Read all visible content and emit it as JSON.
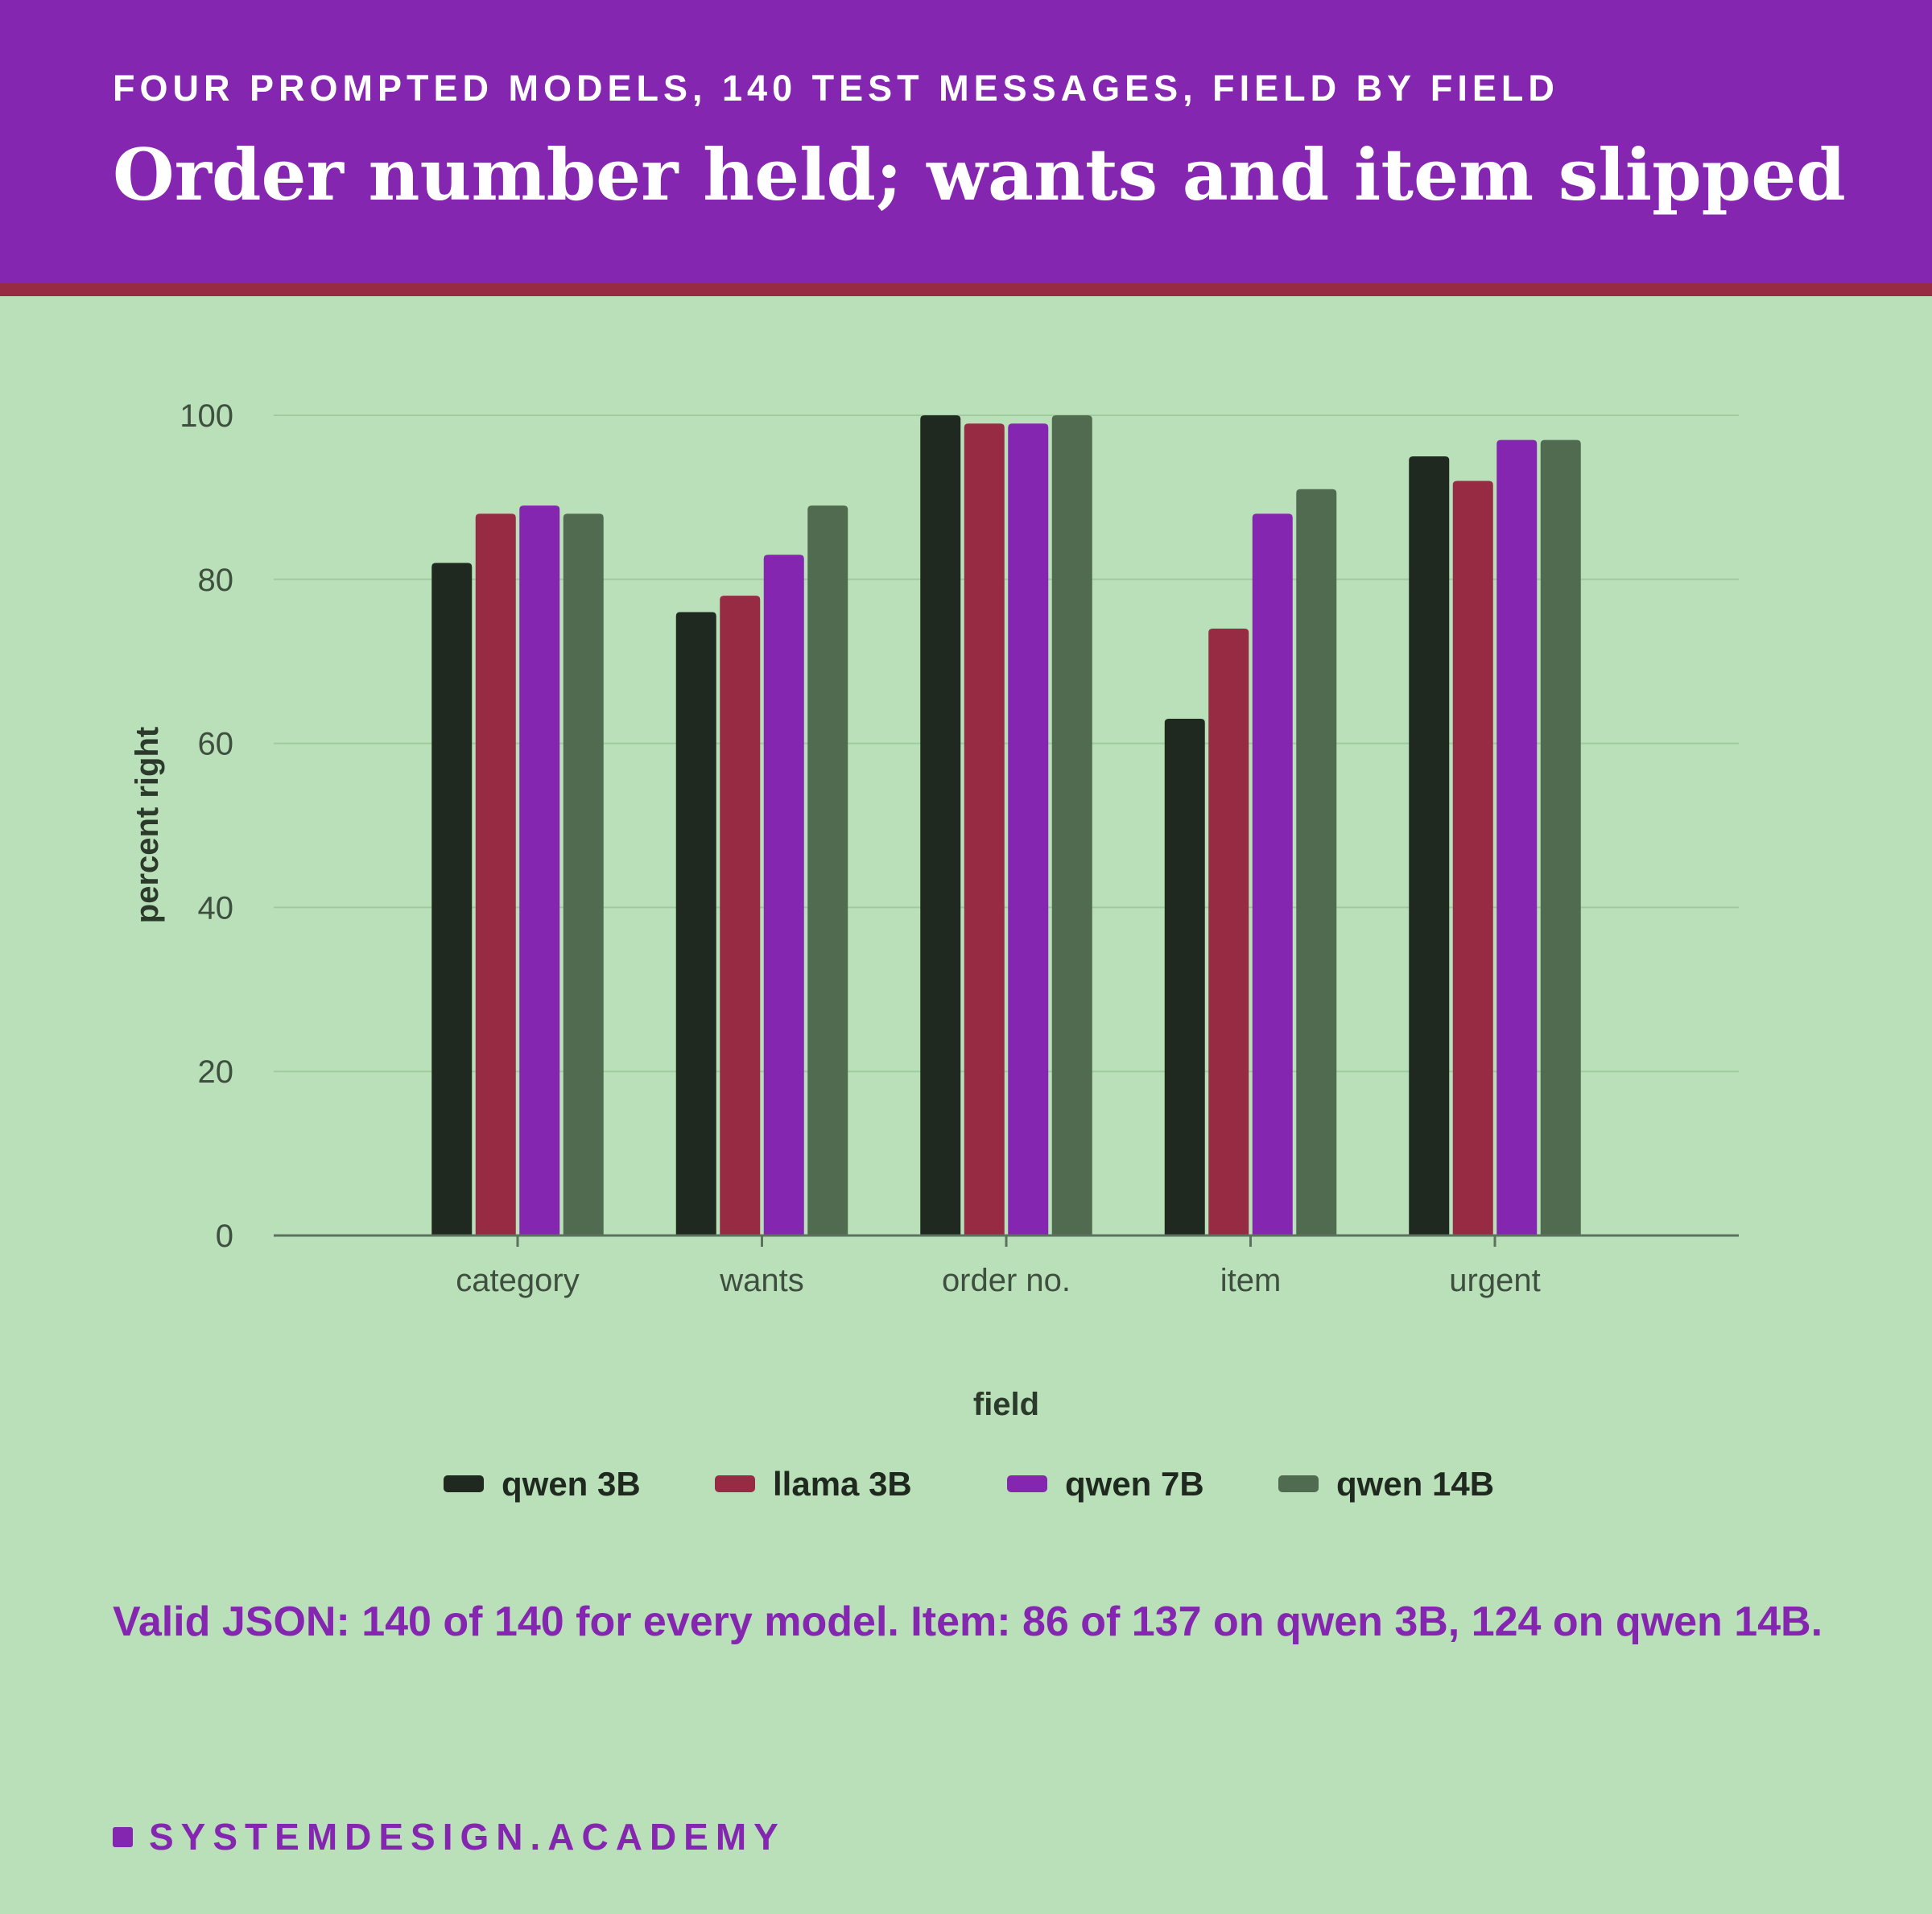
{
  "header": {
    "eyebrow": "FOUR PROMPTED MODELS, 140 TEST MESSAGES, FIELD BY FIELD",
    "title": "Order number held; wants and item slipped"
  },
  "chart_data": {
    "type": "bar",
    "xlabel": "field",
    "ylabel": "percent right",
    "ylim": [
      0,
      100
    ],
    "yticks": [
      0,
      20,
      40,
      60,
      80,
      100
    ],
    "grid": true,
    "legend_position": "bottom",
    "categories": [
      "category",
      "wants",
      "order no.",
      "item",
      "urgent"
    ],
    "series": [
      {
        "name": "qwen 3B",
        "color": "#1f291f",
        "values": [
          82,
          76,
          100,
          63,
          95
        ]
      },
      {
        "name": "llama 3B",
        "color": "#962b43",
        "values": [
          88,
          78,
          99,
          74,
          92
        ]
      },
      {
        "name": "qwen 7B",
        "color": "#8426b0",
        "values": [
          89,
          83,
          99,
          88,
          97
        ]
      },
      {
        "name": "qwen 14B",
        "color": "#506b50",
        "values": [
          88,
          89,
          100,
          91,
          97
        ]
      }
    ]
  },
  "note": "Valid JSON: 140 of 140 for every model. Item: 86 of 137 on qwen 3B, 124 on qwen 14B.",
  "brand": {
    "text": "SYSTEMDESIGN.ACADEMY",
    "color": "#8426b0"
  }
}
